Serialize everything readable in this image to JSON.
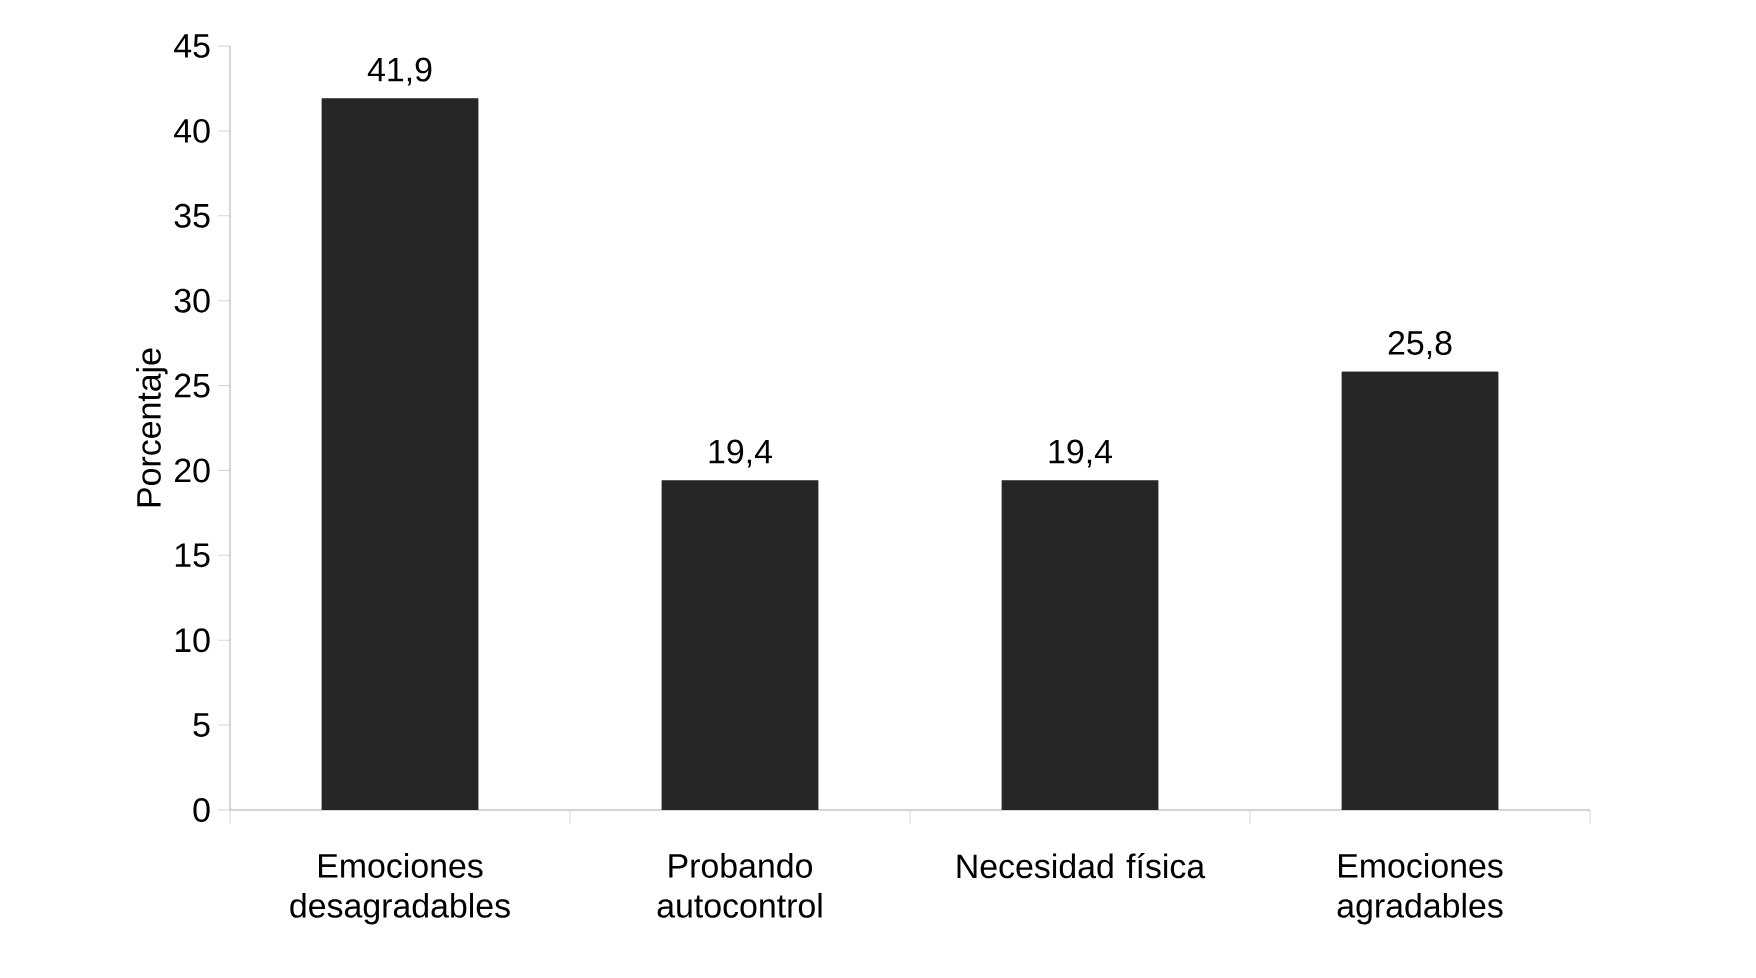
{
  "chart_data": {
    "type": "bar",
    "ylabel": "Porcentaje",
    "categories": [
      "Emociones desagradables",
      "Probando autocontrol",
      "Necesidad física",
      "Emociones agradables"
    ],
    "values": [
      41.9,
      19.4,
      19.4,
      25.8
    ],
    "value_labels": [
      "41,9",
      "19,4",
      "19,4",
      "25,8"
    ],
    "color": "#262626",
    "ylim": [
      0,
      45
    ],
    "yticks": [
      0,
      5,
      10,
      15,
      20,
      25,
      30,
      35,
      40,
      45
    ],
    "grid": false
  }
}
